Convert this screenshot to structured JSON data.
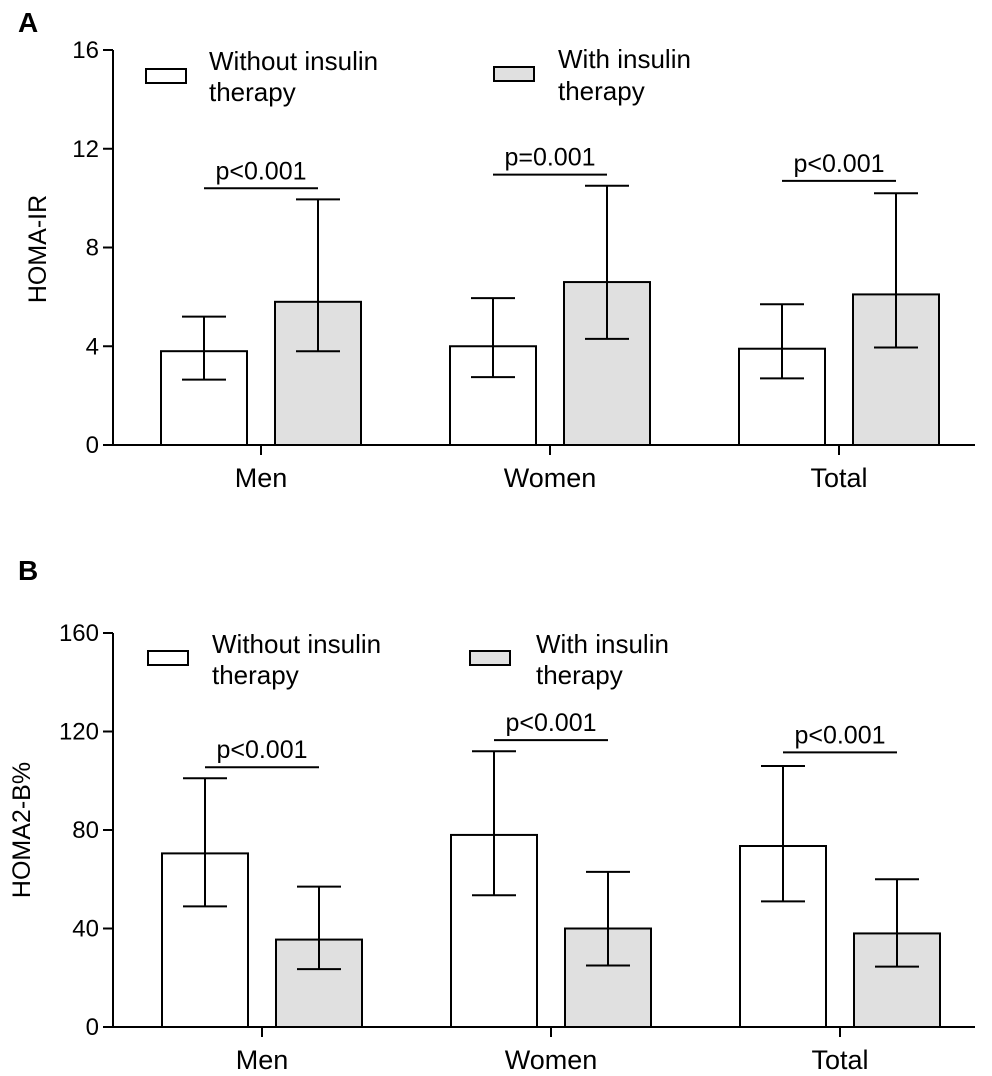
{
  "chart_data": [
    {
      "panel": "A",
      "type": "bar",
      "ylabel": "HOMA-IR",
      "ylim": [
        0,
        16
      ],
      "yticks": [
        0,
        4,
        8,
        12,
        16
      ],
      "categories": [
        "Men",
        "Women",
        "Total"
      ],
      "legend": {
        "placement": "top-left"
      },
      "series": [
        {
          "name": "Without insulin therapy",
          "legend_lines": [
            "Without insulin",
            "therapy"
          ],
          "fill": "#ffffff",
          "values": [
            3.8,
            4.0,
            3.9
          ],
          "err_low": [
            2.65,
            2.75,
            2.7
          ],
          "err_high": [
            5.2,
            5.95,
            5.7
          ]
        },
        {
          "name": "With insulin therapy",
          "legend_lines": [
            "With insulin",
            "therapy"
          ],
          "fill": "#e0e0e0",
          "values": [
            5.8,
            6.6,
            6.1
          ],
          "err_low": [
            3.8,
            4.3,
            3.95
          ],
          "err_high": [
            9.95,
            10.5,
            10.2
          ]
        }
      ],
      "annotations": [
        {
          "category": "Men",
          "text": "p<0.001",
          "y": 10.4
        },
        {
          "category": "Women",
          "text": "p=0.001",
          "y": 10.95
        },
        {
          "category": "Total",
          "text": "p<0.001",
          "y": 10.7
        }
      ]
    },
    {
      "panel": "B",
      "type": "bar",
      "ylabel": "HOMA2-B%",
      "ylim": [
        0,
        160
      ],
      "yticks": [
        0,
        40,
        80,
        120,
        160
      ],
      "categories": [
        "Men",
        "Women",
        "Total"
      ],
      "legend": {
        "placement": "top-left"
      },
      "series": [
        {
          "name": "Without insulin therapy",
          "legend_lines": [
            "Without insulin",
            "therapy"
          ],
          "fill": "#ffffff",
          "values": [
            70.5,
            78,
            73.5
          ],
          "err_low": [
            49,
            53.5,
            51
          ],
          "err_high": [
            101,
            112,
            106
          ]
        },
        {
          "name": "With insulin therapy",
          "legend_lines": [
            "With insulin",
            "therapy"
          ],
          "fill": "#e0e0e0",
          "values": [
            35.5,
            40,
            38
          ],
          "err_low": [
            23.5,
            25,
            24.5
          ],
          "err_high": [
            57,
            63,
            60
          ]
        }
      ],
      "annotations": [
        {
          "category": "Men",
          "text": "p<0.001",
          "y": 105.5
        },
        {
          "category": "Women",
          "text": "p<0.001",
          "y": 116.5
        },
        {
          "category": "Total",
          "text": "p<0.001",
          "y": 111.5
        }
      ]
    }
  ]
}
